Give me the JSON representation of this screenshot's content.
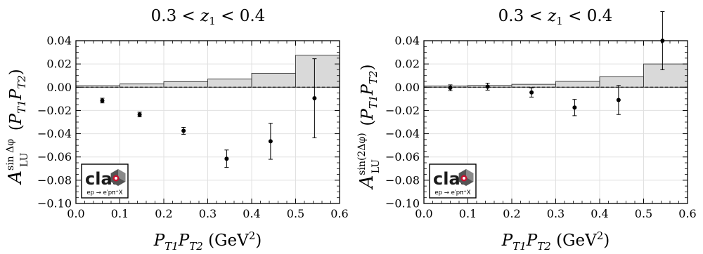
{
  "chart_data": [
    {
      "type": "scatter",
      "title": "0.3 < z₁ < 0.4",
      "xlabel": "P_T1 P_T2 (GeV²)",
      "ylabel": "A_LU^{sin Δφ} (P_T1 P_T2)",
      "xlim": [
        0.0,
        0.6
      ],
      "ylim": [
        -0.1,
        0.04
      ],
      "xticks": [
        "0.0",
        "0.1",
        "0.2",
        "0.3",
        "0.4",
        "0.5",
        "0.6"
      ],
      "yticks": [
        "0.04",
        "0.02",
        "0.00",
        "−0.02",
        "−0.04",
        "−0.06",
        "−0.08",
        "−0.10"
      ],
      "grid": true,
      "zero_line": "dashed",
      "points": [
        {
          "x": 0.06,
          "y": -0.0115,
          "err": 0.002
        },
        {
          "x": 0.145,
          "y": -0.0235,
          "err": 0.002
        },
        {
          "x": 0.245,
          "y": -0.0375,
          "err": 0.003
        },
        {
          "x": 0.343,
          "y": -0.0615,
          "err": 0.0075
        },
        {
          "x": 0.443,
          "y": -0.0465,
          "err": 0.0155
        },
        {
          "x": 0.543,
          "y": -0.0095,
          "err": 0.034
        }
      ],
      "systematic_bands": [
        {
          "x0": 0.0,
          "x1": 0.1,
          "h": 0.0013
        },
        {
          "x0": 0.1,
          "x1": 0.2,
          "h": 0.0028
        },
        {
          "x0": 0.2,
          "x1": 0.3,
          "h": 0.0048
        },
        {
          "x0": 0.3,
          "x1": 0.4,
          "h": 0.007
        },
        {
          "x0": 0.4,
          "x1": 0.5,
          "h": 0.012
        },
        {
          "x0": 0.5,
          "x1": 0.6,
          "h": 0.0275
        }
      ],
      "logo": {
        "word": "clas",
        "reaction": "ep → e′pπ⁺X"
      }
    },
    {
      "type": "scatter",
      "title": "0.3 < z₁ < 0.4",
      "xlabel": "P_T1 P_T2 (GeV²)",
      "ylabel": "A_LU^{sin(2Δφ)} (P_T1 P_T2)",
      "xlim": [
        0.0,
        0.6
      ],
      "ylim": [
        -0.1,
        0.04
      ],
      "xticks": [
        "0.0",
        "0.1",
        "0.2",
        "0.3",
        "0.4",
        "0.5",
        "0.6"
      ],
      "yticks": [
        "0.04",
        "0.02",
        "0.00",
        "−0.02",
        "−0.04",
        "−0.06",
        "−0.08",
        "−0.10"
      ],
      "grid": true,
      "zero_line": "dashed",
      "points": [
        {
          "x": 0.06,
          "y": -0.0005,
          "err": 0.0025
        },
        {
          "x": 0.145,
          "y": 0.0005,
          "err": 0.003
        },
        {
          "x": 0.245,
          "y": -0.0045,
          "err": 0.004
        },
        {
          "x": 0.343,
          "y": -0.0175,
          "err": 0.007
        },
        {
          "x": 0.443,
          "y": -0.011,
          "err": 0.0125
        },
        {
          "x": 0.543,
          "y": 0.04,
          "err": 0.025
        }
      ],
      "systematic_bands": [
        {
          "x0": 0.0,
          "x1": 0.1,
          "h": 0.001
        },
        {
          "x0": 0.1,
          "x1": 0.2,
          "h": 0.0015
        },
        {
          "x0": 0.2,
          "x1": 0.3,
          "h": 0.0025
        },
        {
          "x0": 0.3,
          "x1": 0.4,
          "h": 0.005
        },
        {
          "x0": 0.4,
          "x1": 0.5,
          "h": 0.009
        },
        {
          "x0": 0.5,
          "x1": 0.6,
          "h": 0.02
        }
      ],
      "logo": {
        "word": "clas",
        "reaction": "ep → e′pπ⁺X"
      }
    }
  ],
  "colors": {
    "band_fill": "#d9d9d9",
    "band_edge": "#333333",
    "grid": "#e0e0e0",
    "marker": "#000000",
    "logo_red": "#c8102e",
    "logo_gray": "#555555"
  }
}
